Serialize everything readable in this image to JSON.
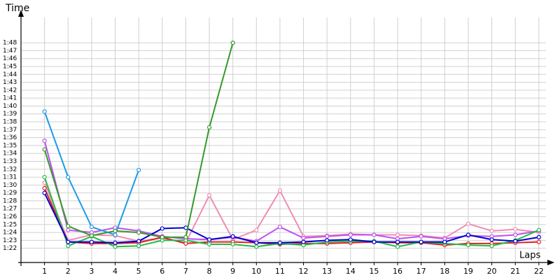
{
  "chart_data": {
    "type": "line",
    "y_label": "Time",
    "x_label": "Laps",
    "xlim": [
      0,
      22.6
    ],
    "ylim": [
      80.2,
      111.2
    ],
    "xticks": [
      1,
      2,
      3,
      4,
      5,
      6,
      7,
      8,
      9,
      10,
      11,
      12,
      13,
      14,
      15,
      16,
      17,
      18,
      19,
      20,
      21,
      22
    ],
    "yticks": [
      {
        "value": 82,
        "label": "1:22"
      },
      {
        "value": 83,
        "label": "1:23"
      },
      {
        "value": 84,
        "label": "1:24"
      },
      {
        "value": 85,
        "label": "1:25"
      },
      {
        "value": 86,
        "label": "1:26"
      },
      {
        "value": 87,
        "label": "1:27"
      },
      {
        "value": 88,
        "label": "1:28"
      },
      {
        "value": 89,
        "label": "1:29"
      },
      {
        "value": 90,
        "label": "1:30"
      },
      {
        "value": 91,
        "label": "1:31"
      },
      {
        "value": 92,
        "label": "1:32"
      },
      {
        "value": 93,
        "label": "1:33"
      },
      {
        "value": 94,
        "label": "1:34"
      },
      {
        "value": 95,
        "label": "1:35"
      },
      {
        "value": 96,
        "label": "1:36"
      },
      {
        "value": 97,
        "label": "1:37"
      },
      {
        "value": 98,
        "label": "1:38"
      },
      {
        "value": 99,
        "label": "1:39"
      },
      {
        "value": 100,
        "label": "1:40"
      },
      {
        "value": 101,
        "label": "1:41"
      },
      {
        "value": 102,
        "label": "1:42"
      },
      {
        "value": 103,
        "label": "1:43"
      },
      {
        "value": 104,
        "label": "1:44"
      },
      {
        "value": 105,
        "label": "1:45"
      },
      {
        "value": 106,
        "label": "1:46"
      },
      {
        "value": 107,
        "label": "1:47"
      },
      {
        "value": 108,
        "label": "1:48"
      }
    ],
    "grid": true,
    "series": [
      {
        "color": "#f08cb4",
        "x": [
          1,
          2,
          3,
          4,
          5,
          6,
          7,
          8,
          9,
          10,
          11,
          12,
          13,
          14,
          15,
          16,
          17,
          18,
          19,
          20,
          21,
          22
        ],
        "values": [
          90.3,
          83.0,
          83.7,
          83.6,
          82.9,
          83.3,
          82.7,
          88.7,
          83.1,
          84.3,
          89.3,
          83.5,
          83.6,
          83.8,
          83.7,
          83.7,
          83.6,
          83.3,
          85.1,
          84.2,
          84.4,
          84.0
        ]
      },
      {
        "color": "#c050f0",
        "x": [
          1,
          2,
          3,
          4,
          5,
          6,
          7,
          8,
          9,
          10,
          11,
          12,
          13,
          14,
          15,
          16,
          17,
          18,
          19,
          20,
          21,
          22
        ],
        "values": [
          95.6,
          84.3,
          84.0,
          84.6,
          84.2,
          83.5,
          83.2,
          83.1,
          83.4,
          82.9,
          84.7,
          83.3,
          83.5,
          83.7,
          83.7,
          83.2,
          83.5,
          83.2,
          83.6,
          83.5,
          83.7,
          84.2
        ]
      },
      {
        "color": "#e02020",
        "x": [
          1,
          2,
          3,
          4,
          5,
          6,
          7,
          8,
          9,
          10,
          11,
          12,
          13,
          14,
          15,
          16,
          17,
          18,
          19,
          20,
          21,
          22
        ],
        "values": [
          89.6,
          82.8,
          82.6,
          82.6,
          82.7,
          83.4,
          82.6,
          82.8,
          82.8,
          82.7,
          82.5,
          82.6,
          82.6,
          82.7,
          82.8,
          82.7,
          82.7,
          82.4,
          82.6,
          82.6,
          82.7,
          82.8
        ]
      },
      {
        "color": "#22bb44",
        "x": [
          1,
          2,
          3,
          4,
          5,
          6,
          7,
          8,
          9,
          10,
          11,
          12,
          13,
          14,
          15,
          16,
          17,
          18,
          19,
          20,
          21,
          22
        ],
        "values": [
          91.0,
          82.3,
          83.5,
          82.2,
          82.3,
          83.0,
          83.0,
          82.5,
          82.5,
          82.2,
          82.6,
          82.4,
          82.8,
          82.9,
          82.9,
          82.2,
          82.8,
          82.6,
          82.4,
          82.3,
          83.0,
          84.3
        ]
      },
      {
        "color": "#0000d0",
        "x": [
          1,
          2,
          3,
          4,
          5,
          6,
          7,
          8,
          9,
          10,
          11,
          12,
          13,
          14,
          15,
          16,
          17,
          18,
          19,
          20,
          21,
          22
        ],
        "values": [
          89.0,
          82.8,
          82.8,
          82.7,
          82.9,
          84.5,
          84.6,
          83.1,
          83.5,
          82.7,
          82.7,
          82.8,
          83.0,
          83.1,
          82.8,
          82.8,
          82.8,
          82.8,
          83.7,
          83.1,
          82.9,
          83.4
        ]
      },
      {
        "color": "#1e9be8",
        "x": [
          1,
          2,
          3,
          4,
          5
        ],
        "values": [
          99.3,
          91.0,
          84.7,
          83.7,
          91.9
        ]
      },
      {
        "color": "#349a2a",
        "x": [
          1,
          2,
          3,
          4,
          5,
          6,
          7,
          8,
          9
        ],
        "values": [
          94.5,
          84.8,
          83.6,
          84.2,
          84.0,
          83.4,
          83.4,
          97.3,
          108.0
        ]
      }
    ]
  }
}
